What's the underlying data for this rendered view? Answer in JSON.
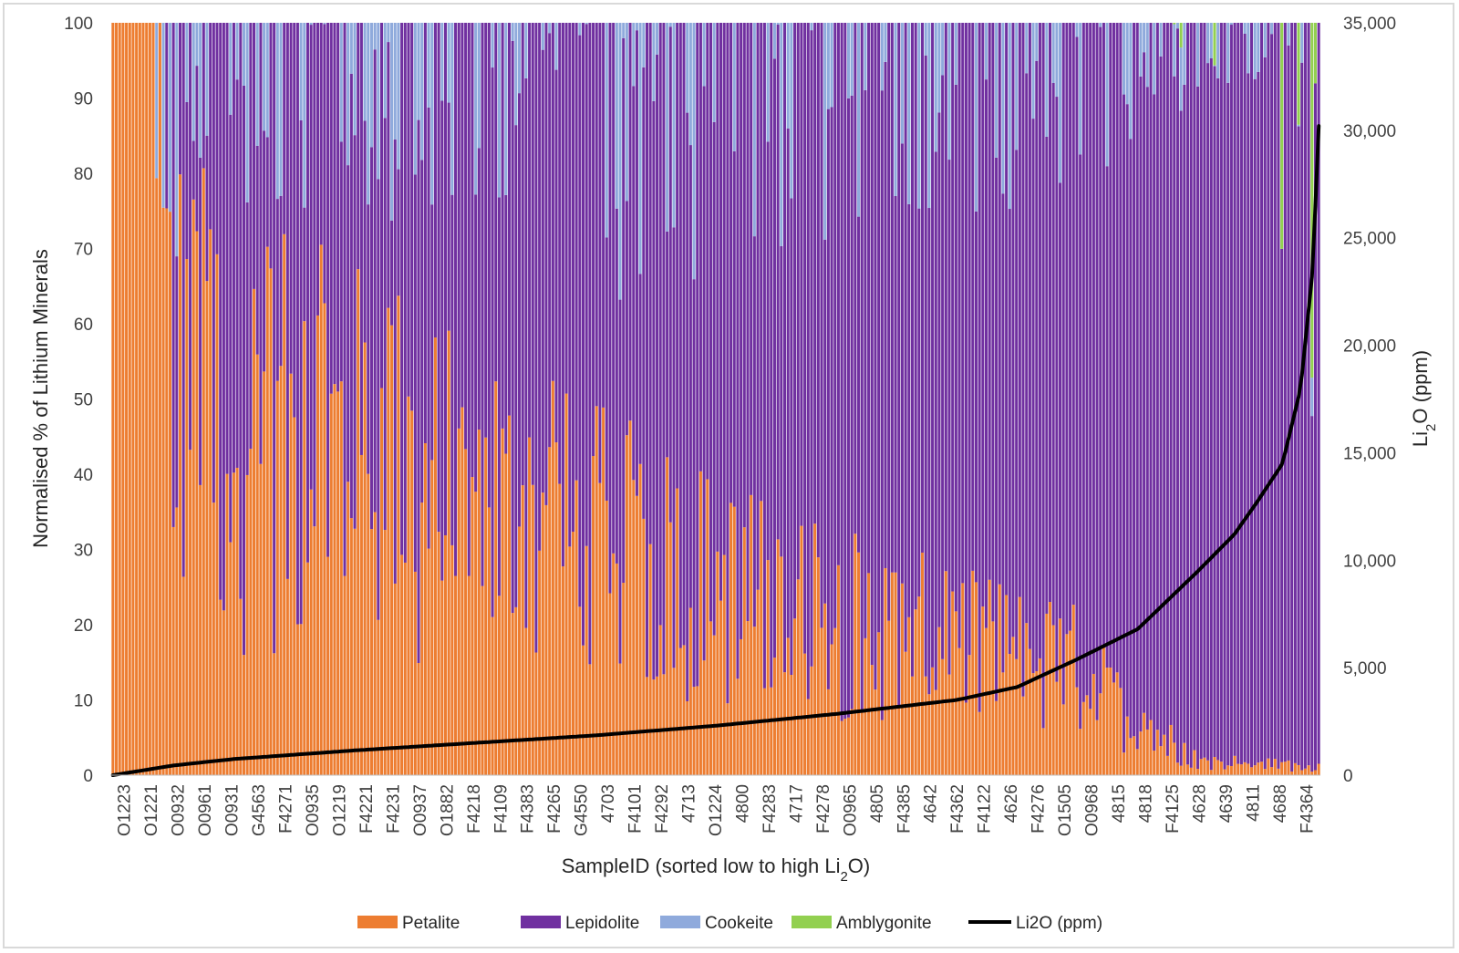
{
  "chart_data": {
    "type": "bar",
    "stacked": true,
    "bar_count": 360,
    "left_axis": {
      "title": "Normalised  % of Lithium Minerals",
      "ylim": [
        0,
        100
      ],
      "ticks": [
        "0",
        "10",
        "20",
        "30",
        "40",
        "50",
        "60",
        "70",
        "80",
        "90",
        "100"
      ]
    },
    "right_axis": {
      "title_main": "Li",
      "title_sub": "2",
      "title_rest": "O (ppm)",
      "ylim": [
        0,
        35000
      ],
      "ticks": [
        "0",
        "5,000",
        "10,000",
        "15,000",
        "20,000",
        "25,000",
        "30,000",
        "35,000"
      ]
    },
    "x_axis": {
      "title_main": "SampleID (sorted low to high Li",
      "title_sub": "2",
      "title_rest": "O)",
      "tick_labels": [
        "O1223",
        "O1221",
        "O0932",
        "O0961",
        "O0931",
        "G4563",
        "F4271",
        "O0935",
        "O1219",
        "F4221",
        "F4231",
        "O0937",
        "O1882",
        "F4218",
        "F4109",
        "F4383",
        "F4265",
        "G4550",
        "4703",
        "F4101",
        "F4292",
        "4713",
        "O1224",
        "4800",
        "F4283",
        "4717",
        "F4278",
        "O0965",
        "4805",
        "F4385",
        "4642",
        "F4362",
        "F4122",
        "4626",
        "F4276",
        "O1505",
        "O0968",
        "4815",
        "4818",
        "F4125",
        "4628",
        "4639",
        "4811",
        "4688",
        "F4364"
      ]
    },
    "series": [
      {
        "name": "Petalite",
        "color": "#ed7d31"
      },
      {
        "name": "Lepidolite",
        "color": "#7030a0"
      },
      {
        "name": "Cookeite",
        "color": "#8faadc"
      },
      {
        "name": "Amblygonite",
        "color": "#92d050"
      }
    ],
    "line_series": {
      "name": "Li2O (ppm)",
      "color": "#000000",
      "axis": "right",
      "profile_x": [
        0,
        0.05,
        0.1,
        0.2,
        0.3,
        0.4,
        0.5,
        0.6,
        0.7,
        0.75,
        0.8,
        0.85,
        0.9,
        0.93,
        0.95,
        0.97,
        0.985,
        0.995,
        1.0
      ],
      "profile_y": [
        0,
        450,
        750,
        1150,
        1500,
        1850,
        2300,
        2850,
        3500,
        4100,
        5400,
        6800,
        9500,
        11200,
        12800,
        14500,
        18000,
        23500,
        30200
      ]
    },
    "legend": {
      "position": "bottom",
      "items": [
        {
          "label": "Petalite",
          "color": "#ed7d31",
          "kind": "box"
        },
        {
          "label": "Lepidolite",
          "color": "#7030a0",
          "kind": "box"
        },
        {
          "label": "Cookeite",
          "color": "#8faadc",
          "kind": "box"
        },
        {
          "label": "Amblygonite",
          "color": "#92d050",
          "kind": "box"
        },
        {
          "label": "Li2O (ppm)",
          "color": "#000000",
          "kind": "line"
        }
      ]
    },
    "petalite_trend": {
      "x": [
        0,
        0.05,
        0.1,
        0.2,
        0.3,
        0.45,
        0.55,
        0.7,
        0.8,
        0.84,
        0.9,
        1.0
      ],
      "y": [
        95,
        55,
        45,
        42,
        35,
        28,
        22,
        17,
        14,
        8,
        2,
        1
      ]
    },
    "cookeite_trend": {
      "x": [
        0,
        0.1,
        0.3,
        0.45,
        0.6,
        0.75,
        0.84,
        0.9,
        1.0
      ],
      "y": [
        10,
        6,
        5,
        8,
        6,
        5,
        4,
        2,
        2
      ]
    },
    "amblygonite_trend": {
      "x": [
        0,
        0.88,
        0.92,
        1.0
      ],
      "y": [
        0,
        0,
        4,
        6
      ]
    },
    "petalite_only_bars": [
      0,
      1,
      2,
      3,
      4,
      5,
      6,
      7,
      8,
      9,
      10,
      11,
      12
    ]
  }
}
